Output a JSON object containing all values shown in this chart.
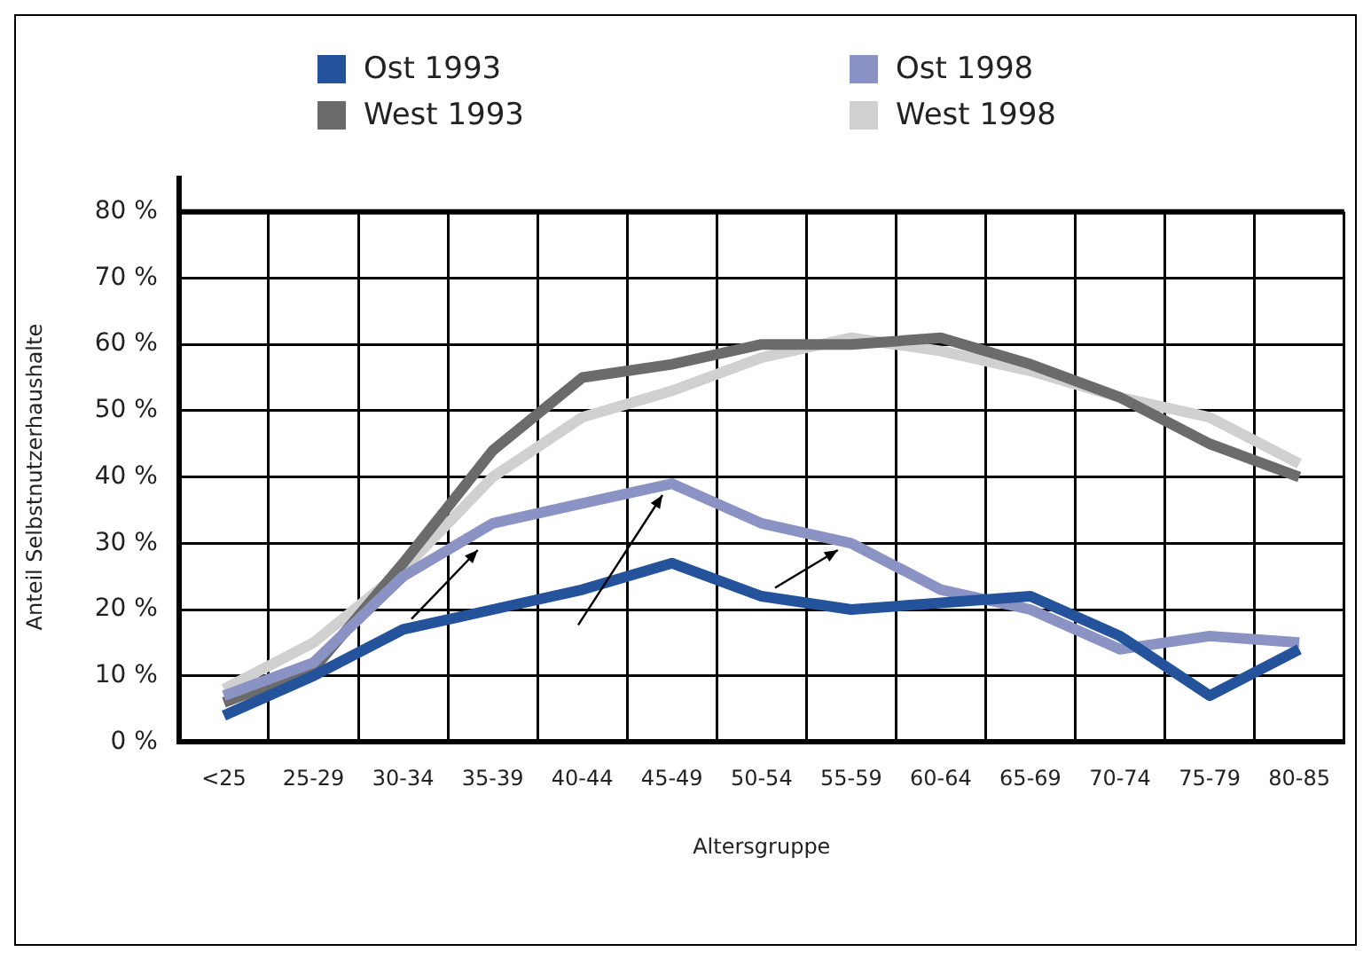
{
  "chart_data": {
    "type": "line",
    "xlabel": "Altersgruppe",
    "ylabel": "Anteil Selbstnutzerhaushalte",
    "categories": [
      "<25",
      "25-29",
      "30-34",
      "35-39",
      "40-44",
      "45-49",
      "50-54",
      "55-59",
      "60-64",
      "65-69",
      "70-74",
      "75-79",
      "80-85"
    ],
    "series": [
      {
        "name": "Ost 1993",
        "color": "#24529b",
        "values": [
          4,
          10,
          17,
          20,
          23,
          27,
          22,
          20,
          21,
          22,
          16,
          7,
          14
        ]
      },
      {
        "name": "Ost 1998",
        "color": "#8b93c4",
        "values": [
          7,
          12,
          25,
          33,
          36,
          39,
          33,
          30,
          23,
          20,
          14,
          16,
          15
        ]
      },
      {
        "name": "West 1993",
        "color": "#6b6b6b",
        "values": [
          6,
          11,
          27,
          44,
          55,
          57,
          60,
          60,
          61,
          57,
          52,
          45,
          40
        ]
      },
      {
        "name": "West 1998",
        "color": "#d0d0d0",
        "values": [
          8,
          15,
          26,
          40,
          49,
          53,
          58,
          61,
          59,
          56,
          52,
          49,
          42
        ]
      }
    ],
    "ylim": [
      0,
      80
    ],
    "yticks": [
      {
        "value": 0,
        "label": "0 %"
      },
      {
        "value": 10,
        "label": "10 %"
      },
      {
        "value": 20,
        "label": "20 %"
      },
      {
        "value": 30,
        "label": "30 %"
      },
      {
        "value": 40,
        "label": "40 %"
      },
      {
        "value": 50,
        "label": "50 %"
      },
      {
        "value": 60,
        "label": "60 %"
      },
      {
        "value": 70,
        "label": "70 %"
      },
      {
        "value": 80,
        "label": "80 %"
      }
    ],
    "grid": true,
    "legend": "top",
    "marker": "none",
    "line_style": "solid"
  }
}
